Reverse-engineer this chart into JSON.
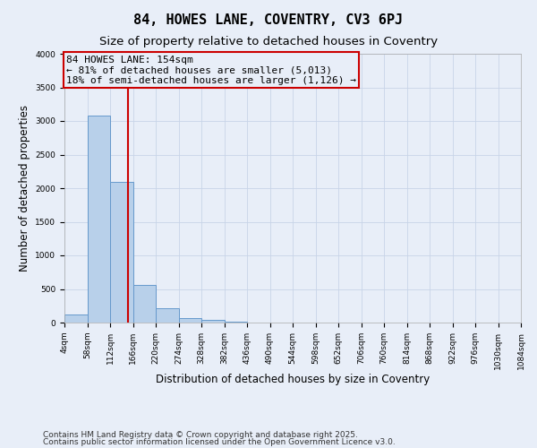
{
  "title": "84, HOWES LANE, COVENTRY, CV3 6PJ",
  "subtitle": "Size of property relative to detached houses in Coventry",
  "xlabel": "Distribution of detached houses by size in Coventry",
  "ylabel": "Number of detached properties",
  "bar_edges": [
    4,
    58,
    112,
    166,
    220,
    274,
    328,
    382,
    436,
    490,
    544,
    598,
    652,
    706,
    760,
    814,
    868,
    922,
    976,
    1030,
    1084
  ],
  "bar_heights": [
    120,
    3080,
    2090,
    565,
    215,
    65,
    35,
    10,
    5,
    2,
    2,
    1,
    1,
    1,
    0,
    0,
    0,
    0,
    0,
    0
  ],
  "bar_color": "#b8d0ea",
  "bar_edgecolor": "#6699cc",
  "property_size": 154,
  "vline_color": "#cc0000",
  "annotation_text": "84 HOWES LANE: 154sqm\n← 81% of detached houses are smaller (5,013)\n18% of semi-detached houses are larger (1,126) →",
  "annotation_box_color": "#cc0000",
  "ylim": [
    0,
    4000
  ],
  "yticks": [
    0,
    500,
    1000,
    1500,
    2000,
    2500,
    3000,
    3500,
    4000
  ],
  "grid_color": "#c8d4e8",
  "background_color": "#e8eef8",
  "footer1": "Contains HM Land Registry data © Crown copyright and database right 2025.",
  "footer2": "Contains public sector information licensed under the Open Government Licence v3.0.",
  "title_fontsize": 11,
  "subtitle_fontsize": 9.5,
  "tick_fontsize": 6.5,
  "label_fontsize": 8.5,
  "footer_fontsize": 6.5,
  "annotation_fontsize": 8
}
